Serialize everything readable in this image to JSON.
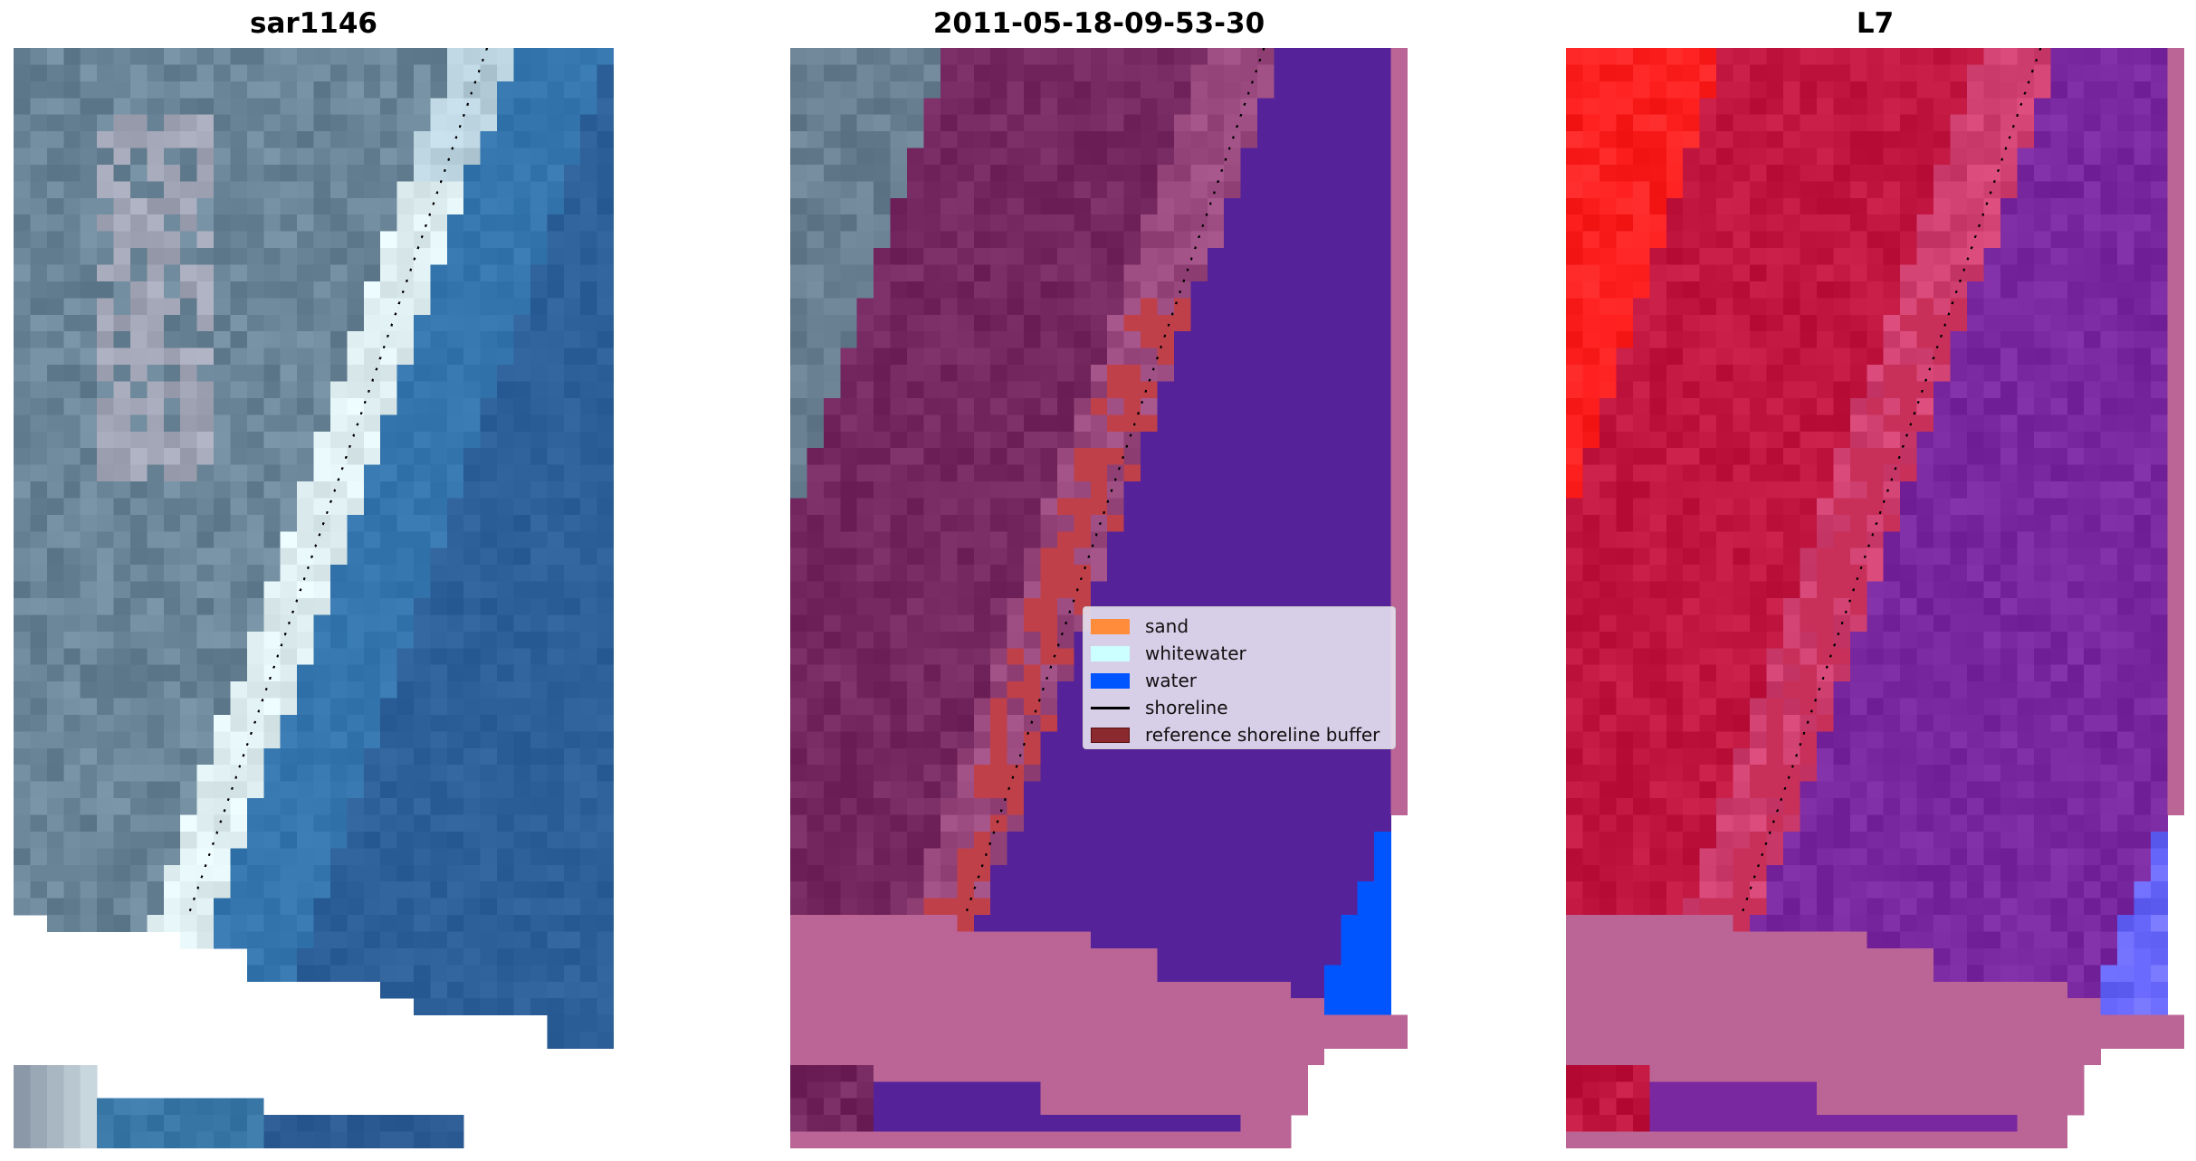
{
  "panels": [
    {
      "title": "sar1146"
    },
    {
      "title": "2011-05-18-09-53-30"
    },
    {
      "title": "L7"
    }
  ],
  "legend": {
    "items": [
      {
        "label": "sand",
        "color": "#ff8c3a",
        "kind": "patch"
      },
      {
        "label": "whitewater",
        "color": "#ccffff",
        "kind": "patch"
      },
      {
        "label": "water",
        "color": "#0055ff",
        "kind": "patch"
      },
      {
        "label": "shoreline",
        "color": "#000000",
        "kind": "line"
      },
      {
        "label": "reference shoreline buffer",
        "color": "#8b2a2e",
        "kind": "patch"
      }
    ]
  },
  "colors": {
    "water_rgb": "#2f609a",
    "land_rgb": "#6a8598",
    "classified_water": "#55229a",
    "land_overlay": "#74285f",
    "buffer": "#c0404a",
    "no_data": "#bb6496",
    "l7_land": "#c0163f",
    "l7_sand": "#ff1a1a",
    "l7_water": "#7a25a0"
  }
}
